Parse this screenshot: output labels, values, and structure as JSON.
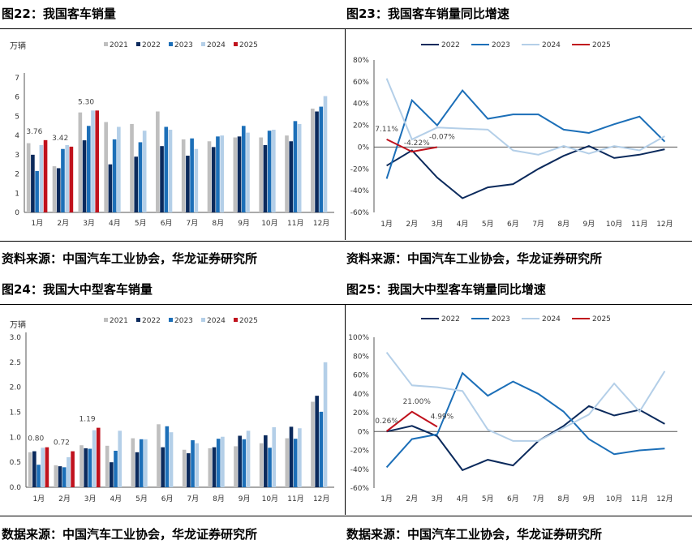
{
  "panels": [
    {
      "title": "图22：我国客车销量",
      "source": "资料来源：中国汽车工业协会，华龙证券研究所",
      "chart_data": {
        "type": "bar",
        "unit": "万辆",
        "categories": [
          "1月",
          "2月",
          "3月",
          "4月",
          "5月",
          "6月",
          "7月",
          "8月",
          "9月",
          "10月",
          "11月",
          "12月"
        ],
        "ylim": [
          0,
          7
        ],
        "yticks": [
          "0",
          "1",
          "2",
          "3",
          "4",
          "5",
          "6",
          "7"
        ],
        "series": [
          {
            "name": "2021",
            "color": "#bfbfbf",
            "values": [
              3.6,
              2.4,
              5.2,
              4.7,
              4.6,
              5.25,
              3.8,
              3.7,
              3.9,
              3.9,
              4.0,
              5.4
            ]
          },
          {
            "name": "2022",
            "color": "#0b2a5c",
            "values": [
              3.0,
              2.3,
              3.75,
              2.5,
              2.9,
              3.45,
              2.95,
              3.4,
              3.95,
              3.5,
              3.7,
              5.25
            ]
          },
          {
            "name": "2023",
            "color": "#1c6fb8",
            "values": [
              2.15,
              3.3,
              4.5,
              3.8,
              3.65,
              4.45,
              3.85,
              3.95,
              4.5,
              4.25,
              4.75,
              5.5
            ]
          },
          {
            "name": "2024",
            "color": "#b4cfe8",
            "values": [
              3.5,
              3.5,
              5.3,
              4.45,
              4.25,
              4.3,
              3.3,
              4.0,
              4.15,
              4.3,
              4.6,
              6.05
            ]
          },
          {
            "name": "2025",
            "color": "#c0121d",
            "values": [
              3.76,
              3.42,
              5.3,
              null,
              null,
              null,
              null,
              null,
              null,
              null,
              null,
              null
            ]
          }
        ],
        "data_labels": [
          {
            "series": "2025",
            "index": 0,
            "text": "3.76"
          },
          {
            "series": "2025",
            "index": 1,
            "text": "3.42"
          },
          {
            "series": "2025",
            "index": 2,
            "text": "5.30"
          }
        ]
      }
    },
    {
      "title": "图23：我国客车销量同比增速",
      "source": "资料来源：中国汽车工业协会，华龙证券研究所",
      "chart_data": {
        "type": "line",
        "categories": [
          "1月",
          "2月",
          "3月",
          "4月",
          "5月",
          "6月",
          "7月",
          "8月",
          "9月",
          "10月",
          "11月",
          "12月"
        ],
        "ylim": [
          -60,
          80
        ],
        "yticks": [
          "-60%",
          "-40%",
          "-20%",
          "0%",
          "20%",
          "40%",
          "60%",
          "80%"
        ],
        "series": [
          {
            "name": "2022",
            "color": "#0b2a5c",
            "values": [
              -17,
              -3,
              -28,
              -47,
              -37,
              -34,
              -20,
              -8,
              1,
              -10,
              -7,
              -2
            ]
          },
          {
            "name": "2023",
            "color": "#1c6fb8",
            "values": [
              -29,
              43,
              20,
              52,
              26,
              30,
              30,
              16,
              13,
              21,
              28,
              5
            ]
          },
          {
            "name": "2024",
            "color": "#b4cfe8",
            "values": [
              63,
              7,
              18,
              17,
              16,
              -3,
              -7,
              1,
              -6,
              1,
              -3,
              10
            ]
          },
          {
            "name": "2025",
            "color": "#c0121d",
            "values": [
              7.11,
              -4.22,
              -0.07,
              null,
              null,
              null,
              null,
              null,
              null,
              null,
              null,
              null
            ]
          }
        ],
        "data_labels": [
          {
            "series": "2025",
            "index": 0,
            "text": "7.11%"
          },
          {
            "series": "2025",
            "index": 1,
            "text": "-4.22%"
          },
          {
            "series": "2025",
            "index": 2,
            "text": "-0.07%"
          }
        ]
      }
    },
    {
      "title": "图24：我国大中型客车销量",
      "source": "数据来源：中国汽车工业协会，华龙证券研究所",
      "chart_data": {
        "type": "bar",
        "unit": "万辆",
        "categories": [
          "1月",
          "2月",
          "3月",
          "4月",
          "5月",
          "6月",
          "7月",
          "8月",
          "9月",
          "10月",
          "11月",
          "12月"
        ],
        "ylim": [
          0,
          3.0
        ],
        "yticks": [
          "0.0",
          "0.5",
          "1.0",
          "1.5",
          "2.0",
          "2.5",
          "3.0"
        ],
        "series": [
          {
            "name": "2021",
            "color": "#bfbfbf",
            "values": [
              0.7,
              0.44,
              0.84,
              0.83,
              0.98,
              1.26,
              0.75,
              0.78,
              0.82,
              0.88,
              0.98,
              1.71
            ]
          },
          {
            "name": "2022",
            "color": "#0b2a5c",
            "values": [
              0.72,
              0.42,
              0.78,
              0.5,
              0.7,
              0.8,
              0.68,
              0.8,
              1.03,
              1.04,
              1.21,
              1.83
            ]
          },
          {
            "name": "2023",
            "color": "#1c6fb8",
            "values": [
              0.45,
              0.4,
              0.77,
              0.73,
              0.96,
              1.22,
              0.94,
              0.97,
              0.96,
              0.79,
              0.97,
              1.51
            ]
          },
          {
            "name": "2024",
            "color": "#b4cfe8",
            "values": [
              0.79,
              0.6,
              1.14,
              1.13,
              0.96,
              1.1,
              0.88,
              1.01,
              1.13,
              1.2,
              1.18,
              2.5
            ]
          },
          {
            "name": "2025",
            "color": "#c0121d",
            "values": [
              0.8,
              0.72,
              1.19,
              null,
              null,
              null,
              null,
              null,
              null,
              null,
              null,
              null
            ]
          }
        ],
        "data_labels": [
          {
            "series": "2025",
            "index": 0,
            "text": "0.80"
          },
          {
            "series": "2025",
            "index": 1,
            "text": "0.72"
          },
          {
            "series": "2025",
            "index": 2,
            "text": "1.19"
          }
        ]
      }
    },
    {
      "title": "图25：我国大中型客车销量同比增速",
      "source": "数据来源：中国汽车工业协会，华龙证券研究所",
      "chart_data": {
        "type": "line",
        "categories": [
          "1月",
          "2月",
          "3月",
          "4月",
          "5月",
          "6月",
          "7月",
          "8月",
          "9月",
          "10月",
          "11月",
          "12月"
        ],
        "ylim": [
          -60,
          100
        ],
        "yticks": [
          "-60%",
          "-40%",
          "-20%",
          "0%",
          "20%",
          "40%",
          "60%",
          "80%",
          "100%"
        ],
        "series": [
          {
            "name": "2022",
            "color": "#0b2a5c",
            "values": [
              0,
              6,
              -5,
              -41,
              -30,
              -36,
              -10,
              6,
              27,
              17,
              23,
              8
            ]
          },
          {
            "name": "2023",
            "color": "#1c6fb8",
            "values": [
              -38,
              -8,
              -3,
              62,
              38,
              53,
              40,
              21,
              -8,
              -24,
              -20,
              -18
            ]
          },
          {
            "name": "2024",
            "color": "#b4cfe8",
            "values": [
              84,
              49,
              47,
              43,
              2,
              -10,
              -10,
              4,
              18,
              51,
              21,
              64
            ]
          },
          {
            "name": "2025",
            "color": "#c0121d",
            "values": [
              0.26,
              21.0,
              4.99,
              null,
              null,
              null,
              null,
              null,
              null,
              null,
              null,
              null
            ]
          }
        ],
        "data_labels": [
          {
            "series": "2025",
            "index": 0,
            "text": "0.26%"
          },
          {
            "series": "2025",
            "index": 1,
            "text": "21.00%"
          },
          {
            "series": "2025",
            "index": 2,
            "text": "4.99%"
          }
        ]
      }
    }
  ]
}
